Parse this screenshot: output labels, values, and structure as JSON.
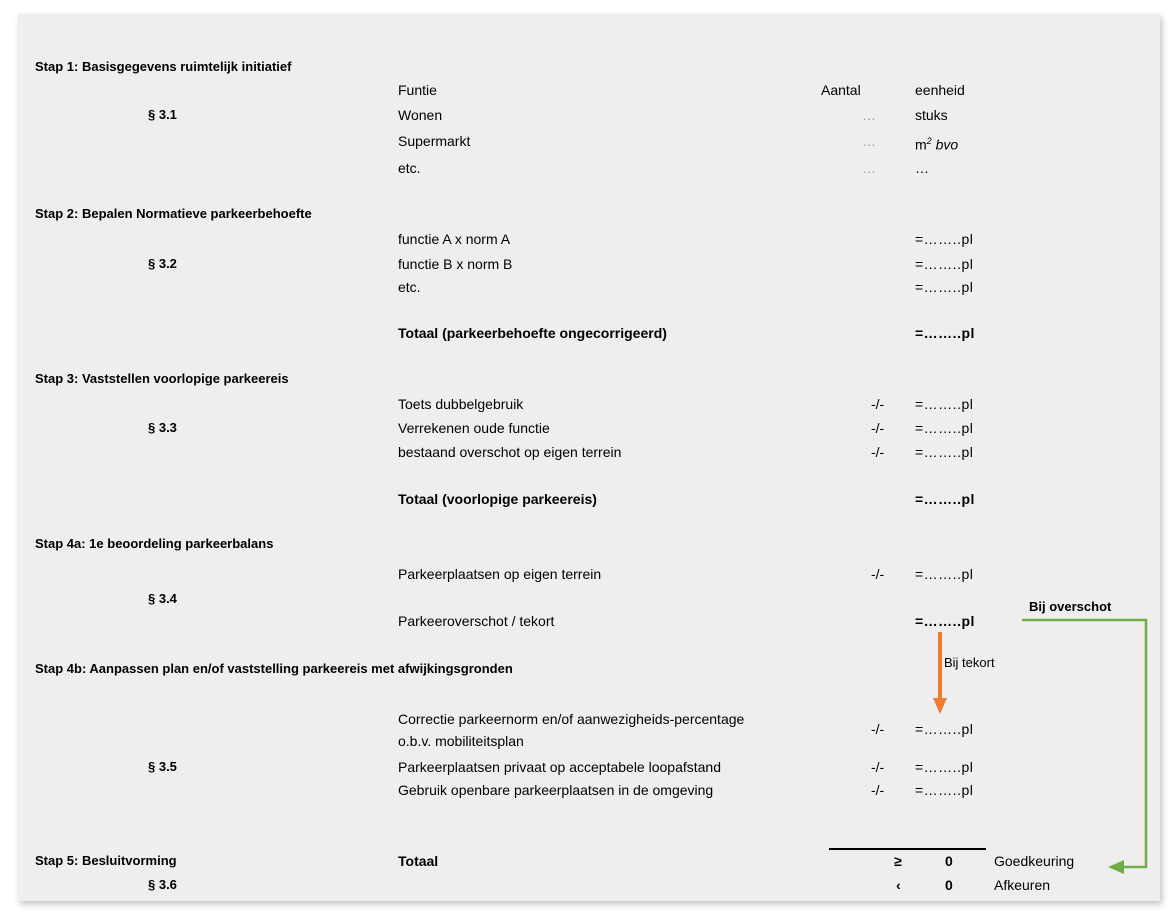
{
  "stap1": {
    "heading": "Stap 1: Basisgegevens ruimtelijk initiatief",
    "section": "§ 3.1",
    "header": {
      "funtie": "Funtie",
      "aantal": "Aantal",
      "eenheid": "eenheid"
    },
    "rows": [
      {
        "label": "Wonen",
        "aantal": "…",
        "eenheid": "stuks"
      },
      {
        "label": "Supermarkt",
        "aantal": "…",
        "eenheid_main": "m",
        "eenheid_sup": "2",
        "eenheid_em": "bvo"
      },
      {
        "label": "etc.",
        "aantal": "…",
        "eenheid": "…"
      }
    ]
  },
  "stap2": {
    "heading": "Stap 2: Bepalen Normatieve parkeerbehoefte",
    "section": "§ 3.2",
    "rows": [
      {
        "label": "functie A x norm A",
        "value": "=……..pl"
      },
      {
        "label": "functie B x norm B",
        "value": "=……..pl"
      },
      {
        "label": "etc.",
        "value": "=……..pl"
      }
    ],
    "total_label": "Totaal (parkeerbehoefte ongecorrigeerd)",
    "total_value": "=……..pl"
  },
  "stap3": {
    "heading": "Stap 3: Vaststellen voorlopige parkeereis",
    "section": "§ 3.3",
    "rows": [
      {
        "label": "Toets dubbelgebruik",
        "op": "-/-",
        "value": "=……..pl"
      },
      {
        "label": "Verrekenen oude functie",
        "op": "-/-",
        "value": "=……..pl"
      },
      {
        "label": "bestaand overschot op eigen terrein",
        "op": "-/-",
        "value": "=……..pl"
      }
    ],
    "total_label": "Totaal (voorlopige parkeereis)",
    "total_value": "=……..pl"
  },
  "stap4a": {
    "heading": "Stap 4a: 1e beoordeling parkeerbalans",
    "section": "§ 3.4",
    "row": {
      "label": "Parkeerplaatsen op eigen terrein",
      "op": "-/-",
      "value": "=……..pl"
    },
    "balance_label": "Parkeeroverschot / tekort",
    "balance_value": "=……..pl"
  },
  "stap4b": {
    "heading": "Stap 4b: Aanpassen plan en/of vaststelling parkeereis met afwijkingsgronden",
    "section": "§ 3.5",
    "rows": [
      {
        "label_line1": "Correctie parkeernorm en/of aanwezigheids-percentage",
        "label_line2": "o.b.v. mobiliteitsplan",
        "op": "-/-",
        "value": "=……..pl"
      },
      {
        "label": "Parkeerplaatsen privaat op acceptabele loopafstand",
        "op": "-/-",
        "value": "=……..pl"
      },
      {
        "label": "Gebruik openbare parkeerplaatsen in de omgeving",
        "op": "-/-",
        "value": "=……..pl"
      }
    ]
  },
  "stap5": {
    "heading": "Stap 5: Besluitvorming",
    "section": "§ 3.6",
    "total_label": "Totaal",
    "ge_symbol": "≥",
    "ge_value": "0",
    "ge_label": "Goedkeuring",
    "lt_symbol": "‹",
    "lt_value": "0",
    "lt_label": "Afkeuren"
  },
  "annotations": {
    "overschot": "Bij overschot",
    "tekort": "Bij tekort"
  },
  "colors": {
    "panel": "#eeeeee",
    "arrow_orange": "#ed7d31",
    "arrow_green": "#70ad47"
  }
}
